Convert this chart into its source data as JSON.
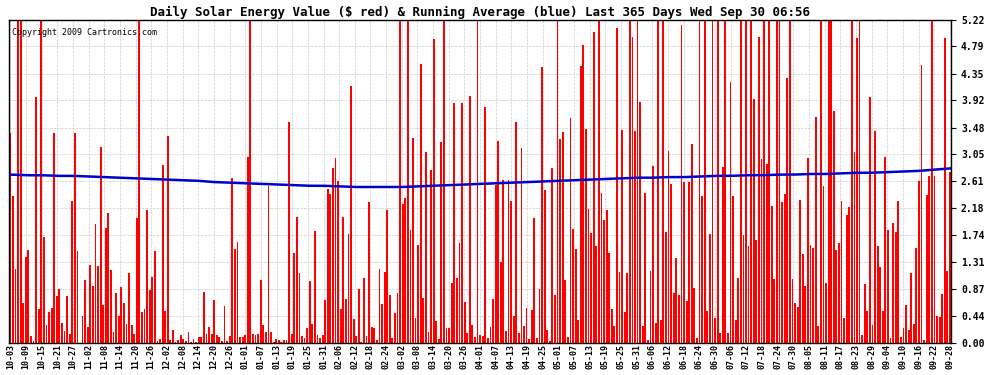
{
  "title": "Daily Solar Energy Value ($ red) & Running Average (blue) Last 365 Days Wed Sep 30 06:56",
  "copyright_text": "Copyright 2009 Cartronics.com",
  "yticks": [
    0.0,
    0.44,
    0.87,
    1.31,
    1.74,
    2.18,
    2.61,
    3.05,
    3.48,
    3.92,
    4.35,
    4.79,
    5.22
  ],
  "ymax": 5.22,
  "bar_color": "#ff0000",
  "avg_line_color": "#0000cc",
  "background_color": "#ffffff",
  "grid_color": "#cccccc",
  "border_color": "#000000",
  "title_fontsize": 9,
  "copyright_fontsize": 6,
  "xtick_fontsize": 6,
  "ytick_fontsize": 7,
  "x_labels": [
    "10-03",
    "10-09",
    "10-15",
    "10-21",
    "10-27",
    "11-02",
    "11-08",
    "11-14",
    "11-20",
    "11-26",
    "12-02",
    "12-08",
    "12-14",
    "12-20",
    "12-26",
    "01-01",
    "01-07",
    "01-13",
    "01-19",
    "01-25",
    "01-31",
    "02-06",
    "02-12",
    "02-18",
    "02-24",
    "03-02",
    "03-08",
    "03-14",
    "03-20",
    "03-26",
    "04-01",
    "04-07",
    "04-13",
    "04-19",
    "04-25",
    "05-01",
    "05-07",
    "05-13",
    "05-19",
    "05-25",
    "05-31",
    "06-06",
    "06-12",
    "06-18",
    "06-24",
    "06-30",
    "07-06",
    "07-12",
    "07-18",
    "07-24",
    "07-30",
    "08-05",
    "08-11",
    "08-17",
    "08-23",
    "08-29",
    "09-04",
    "09-10",
    "09-16",
    "09-22",
    "09-28"
  ],
  "avg_line_values": [
    2.72,
    2.71,
    2.71,
    2.7,
    2.7,
    2.69,
    2.68,
    2.67,
    2.66,
    2.65,
    2.64,
    2.63,
    2.62,
    2.6,
    2.59,
    2.58,
    2.57,
    2.56,
    2.55,
    2.54,
    2.54,
    2.53,
    2.52,
    2.52,
    2.52,
    2.52,
    2.53,
    2.54,
    2.55,
    2.56,
    2.57,
    2.58,
    2.59,
    2.6,
    2.61,
    2.62,
    2.63,
    2.64,
    2.65,
    2.66,
    2.67,
    2.67,
    2.68,
    2.68,
    2.69,
    2.7,
    2.7,
    2.71,
    2.71,
    2.72,
    2.72,
    2.73,
    2.73,
    2.74,
    2.75,
    2.75,
    2.76,
    2.77,
    2.78,
    2.8,
    2.82
  ],
  "n_days": 365
}
